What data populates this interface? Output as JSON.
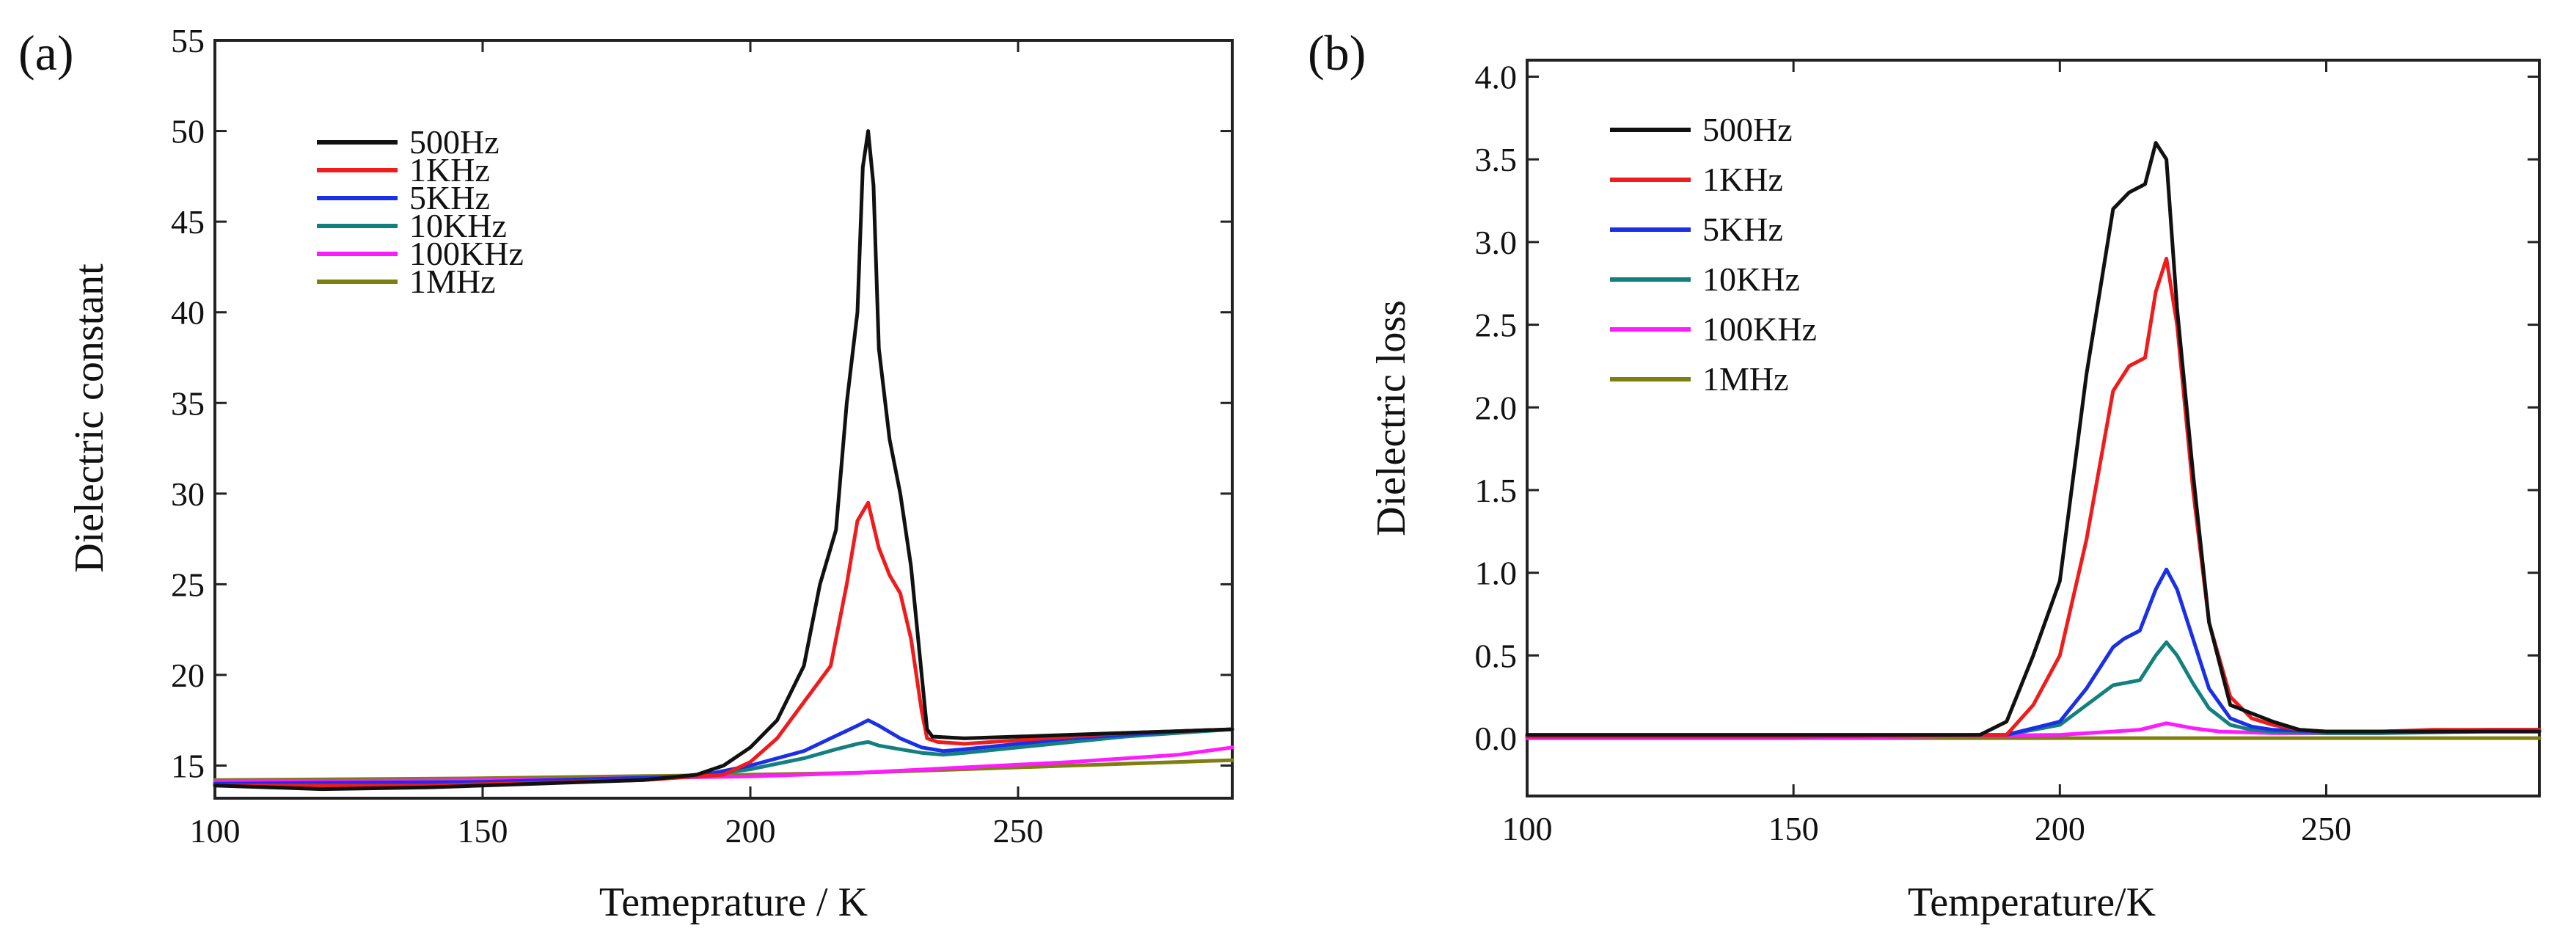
{
  "colors": {
    "500Hz": "#111111",
    "1KHz": "#ee1c1c",
    "5KHz": "#1a2fe6",
    "10KHz": "#138080",
    "100KHz": "#ff1aff",
    "1MHz": "#7f7f10"
  },
  "chart_data": [
    {
      "panel_label": "(a)",
      "type": "line",
      "xlabel": "Temeprature / K",
      "ylabel": "Dielectric constant",
      "xlim": [
        100,
        290
      ],
      "ylim": [
        13.2,
        55
      ],
      "xticks": [
        100,
        150,
        200,
        250
      ],
      "xtick_labels": [
        "100",
        "150",
        "200",
        "250"
      ],
      "yticks": [
        15,
        20,
        25,
        30,
        35,
        40,
        45,
        50,
        55
      ],
      "ytick_labels": [
        "15",
        "20",
        "25",
        "30",
        "35",
        "40",
        "45",
        "50",
        "55"
      ],
      "legend": "top-left",
      "series": [
        {
          "name": "500Hz",
          "x": [
            100,
            120,
            140,
            160,
            180,
            190,
            195,
            200,
            205,
            210,
            213,
            216,
            218,
            220,
            221,
            222,
            223,
            224,
            226,
            228,
            230,
            232,
            233,
            234,
            240,
            250,
            260,
            270,
            280,
            290
          ],
          "y": [
            13.9,
            13.7,
            13.8,
            14.0,
            14.2,
            14.5,
            15.0,
            16.0,
            17.5,
            20.5,
            25.0,
            28.0,
            35.0,
            40.0,
            48.0,
            50.0,
            47.0,
            38.0,
            33.0,
            30.0,
            26.0,
            20.0,
            17.0,
            16.6,
            16.5,
            16.6,
            16.7,
            16.8,
            16.9,
            17.0
          ]
        },
        {
          "name": "1KHz",
          "x": [
            100,
            140,
            180,
            195,
            200,
            205,
            210,
            215,
            218,
            220,
            222,
            224,
            226,
            228,
            230,
            232,
            233,
            235,
            240,
            250,
            260,
            270,
            280,
            290
          ],
          "y": [
            13.9,
            13.9,
            14.2,
            14.5,
            15.2,
            16.5,
            18.5,
            20.5,
            25.0,
            28.5,
            29.5,
            27.0,
            25.5,
            24.5,
            22.0,
            18.0,
            16.5,
            16.3,
            16.2,
            16.4,
            16.6,
            16.8,
            16.9,
            17.0
          ]
        },
        {
          "name": "5KHz",
          "x": [
            100,
            150,
            190,
            200,
            210,
            215,
            220,
            222,
            224,
            228,
            232,
            236,
            240,
            250,
            260,
            270,
            280,
            290
          ],
          "y": [
            14.0,
            14.1,
            14.4,
            15.0,
            15.8,
            16.5,
            17.2,
            17.5,
            17.2,
            16.5,
            16.0,
            15.8,
            15.9,
            16.2,
            16.5,
            16.7,
            16.9,
            17.0
          ]
        },
        {
          "name": "10KHz",
          "x": [
            100,
            150,
            190,
            200,
            210,
            216,
            220,
            222,
            224,
            228,
            232,
            236,
            240,
            250,
            260,
            270,
            280,
            290
          ],
          "y": [
            14.0,
            14.1,
            14.4,
            14.8,
            15.4,
            15.9,
            16.2,
            16.3,
            16.1,
            15.9,
            15.7,
            15.6,
            15.7,
            16.0,
            16.3,
            16.6,
            16.8,
            17.0
          ]
        },
        {
          "name": "100KHz",
          "x": [
            100,
            150,
            200,
            220,
            240,
            260,
            280,
            290
          ],
          "y": [
            14.1,
            14.2,
            14.4,
            14.6,
            14.9,
            15.2,
            15.6,
            16.0
          ]
        },
        {
          "name": "1MHz",
          "x": [
            100,
            150,
            200,
            220,
            240,
            260,
            280,
            290
          ],
          "y": [
            14.2,
            14.3,
            14.5,
            14.6,
            14.8,
            15.0,
            15.2,
            15.3
          ]
        }
      ]
    },
    {
      "panel_label": "(b)",
      "type": "line",
      "xlabel": "Temperature/K",
      "ylabel": "Dielectric loss",
      "xlim": [
        100,
        290
      ],
      "ylim": [
        -0.35,
        4.1
      ],
      "xticks": [
        100,
        150,
        200,
        250
      ],
      "xtick_labels": [
        "100",
        "150",
        "200",
        "250"
      ],
      "yticks": [
        0.0,
        0.5,
        1.0,
        1.5,
        2.0,
        2.5,
        3.0,
        3.5,
        4.0
      ],
      "ytick_labels": [
        "0.0",
        "0.5",
        "1.0",
        "1.5",
        "2.0",
        "2.5",
        "3.0",
        "3.5",
        "4.0"
      ],
      "legend": "top-left",
      "series": [
        {
          "name": "500Hz",
          "x": [
            100,
            150,
            185,
            190,
            195,
            200,
            205,
            210,
            213,
            216,
            218,
            220,
            222,
            225,
            228,
            232,
            236,
            240,
            245,
            250,
            260,
            270,
            280,
            290
          ],
          "y": [
            0.02,
            0.02,
            0.02,
            0.1,
            0.5,
            0.95,
            2.2,
            3.2,
            3.3,
            3.35,
            3.6,
            3.5,
            2.6,
            1.6,
            0.7,
            0.2,
            0.15,
            0.1,
            0.05,
            0.04,
            0.04,
            0.04,
            0.04,
            0.04
          ]
        },
        {
          "name": "1KHz",
          "x": [
            100,
            150,
            190,
            195,
            200,
            205,
            210,
            213,
            216,
            218,
            220,
            222,
            225,
            228,
            232,
            236,
            240,
            245,
            250,
            260,
            270,
            280,
            290
          ],
          "y": [
            0.01,
            0.01,
            0.02,
            0.2,
            0.5,
            1.2,
            2.1,
            2.25,
            2.3,
            2.7,
            2.9,
            2.5,
            1.5,
            0.7,
            0.25,
            0.12,
            0.08,
            0.05,
            0.04,
            0.04,
            0.05,
            0.05,
            0.05
          ]
        },
        {
          "name": "5KHz",
          "x": [
            100,
            150,
            190,
            200,
            205,
            210,
            212,
            215,
            218,
            220,
            222,
            225,
            228,
            232,
            236,
            240,
            250,
            260,
            280,
            290
          ],
          "y": [
            0.01,
            0.01,
            0.02,
            0.1,
            0.3,
            0.55,
            0.6,
            0.65,
            0.9,
            1.02,
            0.9,
            0.6,
            0.3,
            0.12,
            0.07,
            0.05,
            0.04,
            0.04,
            0.05,
            0.05
          ]
        },
        {
          "name": "10KHz",
          "x": [
            100,
            150,
            190,
            200,
            205,
            210,
            215,
            218,
            220,
            222,
            225,
            228,
            232,
            236,
            240,
            250,
            260,
            280,
            290
          ],
          "y": [
            0.01,
            0.01,
            0.02,
            0.08,
            0.2,
            0.32,
            0.35,
            0.5,
            0.58,
            0.5,
            0.33,
            0.18,
            0.08,
            0.05,
            0.04,
            0.03,
            0.03,
            0.04,
            0.04
          ]
        },
        {
          "name": "100KHz",
          "x": [
            100,
            150,
            200,
            210,
            215,
            220,
            225,
            230,
            240,
            260,
            280,
            290
          ],
          "y": [
            0.0,
            0.0,
            0.02,
            0.04,
            0.05,
            0.09,
            0.06,
            0.04,
            0.03,
            0.03,
            0.05,
            0.05
          ]
        },
        {
          "name": "1MHz",
          "x": [
            100,
            150,
            200,
            250,
            290
          ],
          "y": [
            0.0,
            0.0,
            0.0,
            0.0,
            0.0
          ]
        }
      ]
    }
  ]
}
